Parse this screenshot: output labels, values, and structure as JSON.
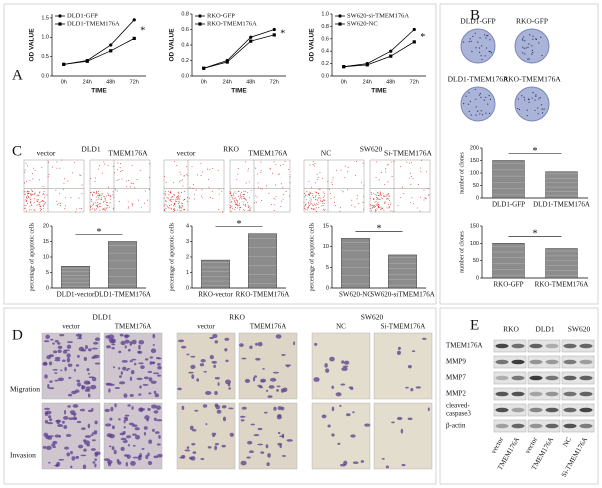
{
  "panel_labels": [
    "A",
    "B",
    "C",
    "D",
    "E"
  ],
  "chart_data": [
    {
      "type": "line",
      "x_label": "TIME",
      "y_label": "OD VALUE",
      "categories": [
        "0h",
        "24h",
        "48h",
        "72h"
      ],
      "series": [
        {
          "name": "DLD1-GFP",
          "color": "#000000",
          "values": [
            0.3,
            0.4,
            0.8,
            1.45
          ]
        },
        {
          "name": "DLD1-TMEM176A",
          "color": "#000000",
          "values": [
            0.3,
            0.38,
            0.65,
            0.97
          ]
        }
      ],
      "ylim": [
        0,
        1.6
      ],
      "yticks": [
        {
          "value": 0,
          "label": "0.0"
        },
        {
          "value": 0.5,
          "label": "0.5"
        },
        {
          "value": 1,
          "label": "1.0"
        },
        {
          "value": 1.5,
          "label": "1.5"
        }
      ],
      "annotation": "*"
    },
    {
      "type": "line",
      "x_label": "TIME",
      "y_label": "OD VALUE",
      "categories": [
        "0h",
        "24h",
        "48h",
        "72h"
      ],
      "series": [
        {
          "name": "RKO-GFP",
          "color": "#000000",
          "values": [
            0.1,
            0.2,
            0.5,
            0.6
          ]
        },
        {
          "name": "RKO-TMEM176A",
          "color": "#000000",
          "values": [
            0.1,
            0.18,
            0.45,
            0.53
          ]
        }
      ],
      "ylim": [
        0,
        0.8
      ],
      "yticks": [
        {
          "value": 0,
          "label": "0.0"
        },
        0.2,
        0.4,
        0.6,
        0.8
      ],
      "annotation": "*"
    },
    {
      "type": "line",
      "x_label": "TIME",
      "y_label": "OD VALUE",
      "categories": [
        "0h",
        "24h",
        "48h",
        "72h"
      ],
      "series": [
        {
          "name": "SW620-si-TMEM176A",
          "color": "#000000",
          "values": [
            0.15,
            0.2,
            0.4,
            0.75
          ]
        },
        {
          "name": "SW620-NC",
          "color": "#000000",
          "values": [
            0.15,
            0.18,
            0.32,
            0.55
          ]
        }
      ],
      "ylim": [
        0,
        1
      ],
      "yticks": [
        {
          "value": 0,
          "label": "0.0"
        },
        0.2,
        0.4,
        0.6,
        0.8,
        {
          "value": 1,
          "label": "1.0"
        }
      ],
      "annotation": "*"
    },
    {
      "type": "bar",
      "y_label": "number of clones",
      "categories": [
        "DLD1-GFP",
        "DLD1-TMEM176A"
      ],
      "values": [
        150,
        105
      ],
      "color": "#8c8c8c",
      "ylim": [
        0,
        200
      ],
      "yticks": [
        0,
        50,
        100,
        150,
        200
      ],
      "annotation": "*"
    },
    {
      "type": "bar",
      "y_label": "number of clones",
      "categories": [
        "RKO-GFP",
        "RKO-TMEM176A"
      ],
      "values": [
        100,
        85
      ],
      "color": "#8c8c8c",
      "ylim": [
        0,
        150
      ],
      "yticks": [
        0,
        50,
        100,
        150
      ],
      "annotation": "*"
    },
    {
      "type": "bar",
      "y_label": "percentage of apoptotic cells",
      "categories": [
        "DLD1-vector",
        "DLD1-TMEM176A"
      ],
      "values": [
        7,
        15
      ],
      "color": "#8c8c8c",
      "ylim": [
        0,
        20
      ],
      "yticks": [
        0,
        5,
        10,
        15,
        20
      ],
      "annotation": "*"
    },
    {
      "type": "bar",
      "y_label": "percentage of apoptotic cells",
      "categories": [
        "RKO-vector",
        "RKO-TMEM176A"
      ],
      "values": [
        1.8,
        3.5
      ],
      "color": "#8c8c8c",
      "ylim": [
        0,
        4
      ],
      "yticks": [
        0,
        1,
        2,
        3,
        4
      ],
      "annotation": "*"
    },
    {
      "type": "bar",
      "y_label": "percentage of apoptotic cells",
      "categories": [
        "SW620-NC",
        "SW620-siTMEM176A"
      ],
      "values": [
        12,
        8
      ],
      "color": "#8c8c8c",
      "ylim": [
        0,
        15
      ],
      "yticks": [
        0,
        5,
        10,
        15
      ],
      "annotation": "*"
    }
  ],
  "colony": {
    "top": [
      "DLD1-GFP",
      "RKO-GFP"
    ],
    "bottom": [
      "DLD1-TMEM176A",
      "RKO-TMEM176A"
    ]
  },
  "flow": [
    {
      "cell": "DLD1",
      "groups": [
        "vector",
        "TMEM176A"
      ]
    },
    {
      "cell": "RKO",
      "groups": [
        "vector",
        "TMEM176A"
      ]
    },
    {
      "cell": "SW620",
      "groups": [
        "NC",
        "Si-TMEM176A"
      ]
    }
  ],
  "invasion": {
    "rows": [
      "Migration",
      "Invasion"
    ],
    "cells": [
      {
        "cell": "DLD1",
        "groups": [
          "vector",
          "TMEM176A"
        ]
      },
      {
        "cell": "RKO",
        "groups": [
          "vector",
          "TMEM176A"
        ]
      },
      {
        "cell": "SW620",
        "groups": [
          "NC",
          "Si-TMEM176A"
        ]
      }
    ]
  },
  "western": {
    "cells": [
      "RKO",
      "DLD1",
      "SW620"
    ],
    "proteins": [
      [
        "TMEM176A"
      ],
      [
        "MMP9"
      ],
      [
        "MMP7"
      ],
      [
        "MMP2"
      ],
      [
        "cleaved-",
        "caspase3"
      ],
      [
        "β-actin"
      ]
    ],
    "lanes": [
      "vector",
      "TMEM176A",
      "vector",
      "TMEM176A",
      "NC",
      "Si-TMEM176A"
    ]
  }
}
